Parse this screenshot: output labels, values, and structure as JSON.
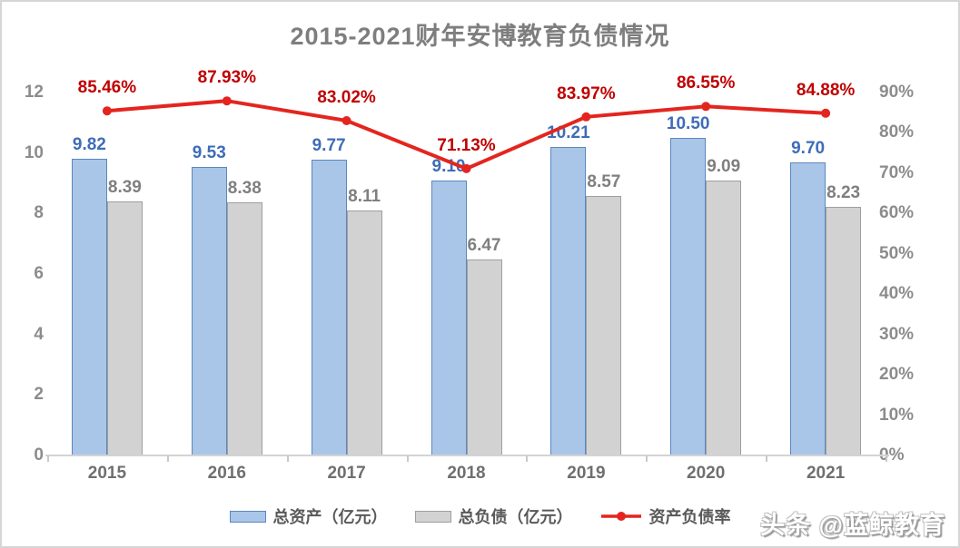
{
  "title": "2015-2021财年安博教育负债情况",
  "watermark": "头条 @蓝鲸教育",
  "legend": {
    "assets_label": "总资产（亿元）",
    "liabilities_label": "总负债（亿元）",
    "ratio_label": "资产负债率"
  },
  "chart_data": {
    "type": "combo-bar-line",
    "title": "2015-2021财年安博教育负债情况",
    "categories": [
      "2015",
      "2016",
      "2017",
      "2018",
      "2019",
      "2020",
      "2021"
    ],
    "series": [
      {
        "name": "总资产（亿元）",
        "type": "bar",
        "axis": "left",
        "values": [
          9.82,
          9.53,
          9.77,
          9.1,
          10.21,
          10.5,
          9.7
        ],
        "fill": "#a9c6e8",
        "border": "#5b87be",
        "label_color": "#3f6cb8"
      },
      {
        "name": "总负债（亿元）",
        "type": "bar",
        "axis": "left",
        "values": [
          8.39,
          8.38,
          8.11,
          6.47,
          8.57,
          9.09,
          8.23
        ],
        "fill": "#d2d2d2",
        "border": "#9f9f9f",
        "label_color": "#7f7f7f"
      },
      {
        "name": "资产负债率",
        "type": "line",
        "axis": "right",
        "values": [
          85.46,
          87.93,
          83.02,
          71.13,
          83.97,
          86.55,
          84.88
        ],
        "value_suffix": "%",
        "color": "#e4251f",
        "label_color": "#c00000"
      }
    ],
    "left_axis": {
      "min": 0,
      "max": 12,
      "step": 2
    },
    "right_axis": {
      "min": 0,
      "max": 90,
      "step": 10,
      "suffix": "%"
    },
    "grid": false,
    "legend_position": "bottom"
  }
}
